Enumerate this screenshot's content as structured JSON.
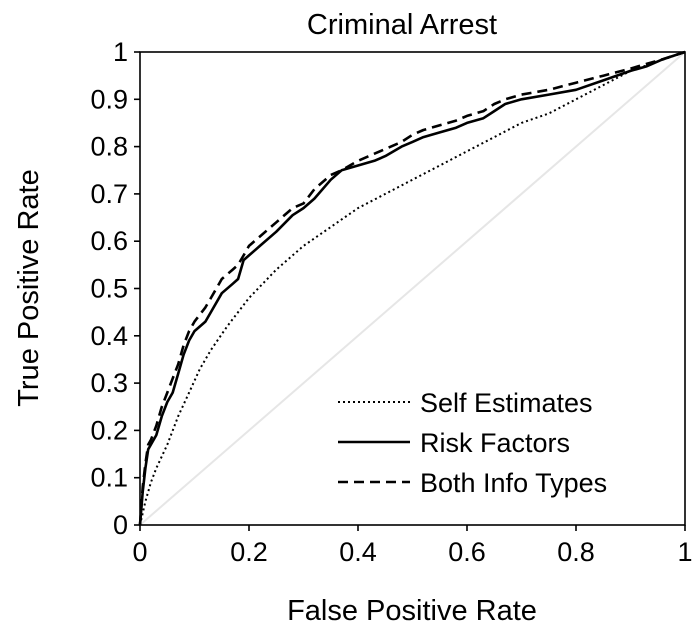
{
  "chart_data": {
    "type": "line",
    "title": "Criminal Arrest",
    "xlabel": "False Positive Rate",
    "ylabel": "True Positive Rate",
    "xlim": [
      0,
      1
    ],
    "ylim": [
      0,
      1
    ],
    "x_ticks": [
      "0",
      "0.2",
      "0.4",
      "0.6",
      "0.8",
      "1"
    ],
    "y_ticks": [
      "0",
      "0.1",
      "0.2",
      "0.3",
      "0.4",
      "0.5",
      "0.6",
      "0.7",
      "0.8",
      "0.9",
      "1"
    ],
    "x_tick_values": [
      0,
      0.2,
      0.4,
      0.6,
      0.8,
      1
    ],
    "y_tick_values": [
      0,
      0.1,
      0.2,
      0.3,
      0.4,
      0.5,
      0.6,
      0.7,
      0.8,
      0.9,
      1
    ],
    "grid": false,
    "legend_position": "bottom-right",
    "reference_line": {
      "points": [
        [
          0,
          0
        ],
        [
          1,
          1
        ]
      ],
      "color": "#e6e6e6"
    },
    "series": [
      {
        "name": "Self Estimates",
        "style": "dotted",
        "color": "#000000",
        "points": [
          [
            0,
            0
          ],
          [
            0.01,
            0.05
          ],
          [
            0.02,
            0.09
          ],
          [
            0.03,
            0.12
          ],
          [
            0.05,
            0.17
          ],
          [
            0.07,
            0.23
          ],
          [
            0.09,
            0.28
          ],
          [
            0.11,
            0.33
          ],
          [
            0.13,
            0.37
          ],
          [
            0.16,
            0.42
          ],
          [
            0.2,
            0.48
          ],
          [
            0.25,
            0.54
          ],
          [
            0.3,
            0.59
          ],
          [
            0.35,
            0.63
          ],
          [
            0.4,
            0.67
          ],
          [
            0.45,
            0.7
          ],
          [
            0.5,
            0.73
          ],
          [
            0.55,
            0.76
          ],
          [
            0.6,
            0.79
          ],
          [
            0.65,
            0.82
          ],
          [
            0.7,
            0.85
          ],
          [
            0.75,
            0.87
          ],
          [
            0.8,
            0.9
          ],
          [
            0.85,
            0.93
          ],
          [
            0.9,
            0.96
          ],
          [
            0.95,
            0.98
          ],
          [
            1,
            1
          ]
        ]
      },
      {
        "name": "Risk Factors",
        "style": "solid",
        "color": "#000000",
        "points": [
          [
            0,
            0
          ],
          [
            0.005,
            0.07
          ],
          [
            0.01,
            0.12
          ],
          [
            0.015,
            0.16
          ],
          [
            0.02,
            0.17
          ],
          [
            0.03,
            0.19
          ],
          [
            0.04,
            0.23
          ],
          [
            0.05,
            0.26
          ],
          [
            0.06,
            0.28
          ],
          [
            0.07,
            0.32
          ],
          [
            0.08,
            0.36
          ],
          [
            0.09,
            0.39
          ],
          [
            0.1,
            0.41
          ],
          [
            0.12,
            0.43
          ],
          [
            0.13,
            0.45
          ],
          [
            0.15,
            0.49
          ],
          [
            0.17,
            0.51
          ],
          [
            0.18,
            0.52
          ],
          [
            0.19,
            0.56
          ],
          [
            0.2,
            0.57
          ],
          [
            0.22,
            0.59
          ],
          [
            0.25,
            0.62
          ],
          [
            0.28,
            0.655
          ],
          [
            0.3,
            0.67
          ],
          [
            0.32,
            0.69
          ],
          [
            0.35,
            0.73
          ],
          [
            0.37,
            0.75
          ],
          [
            0.4,
            0.76
          ],
          [
            0.43,
            0.77
          ],
          [
            0.45,
            0.78
          ],
          [
            0.48,
            0.8
          ],
          [
            0.5,
            0.81
          ],
          [
            0.52,
            0.82
          ],
          [
            0.55,
            0.83
          ],
          [
            0.58,
            0.84
          ],
          [
            0.6,
            0.85
          ],
          [
            0.63,
            0.86
          ],
          [
            0.65,
            0.875
          ],
          [
            0.67,
            0.89
          ],
          [
            0.7,
            0.9
          ],
          [
            0.75,
            0.91
          ],
          [
            0.8,
            0.92
          ],
          [
            0.85,
            0.94
          ],
          [
            0.9,
            0.96
          ],
          [
            0.93,
            0.97
          ],
          [
            0.96,
            0.985
          ],
          [
            1,
            1
          ]
        ]
      },
      {
        "name": "Both Info Types",
        "style": "dashed",
        "color": "#000000",
        "points": [
          [
            0,
            0
          ],
          [
            0.005,
            0.08
          ],
          [
            0.01,
            0.13
          ],
          [
            0.015,
            0.17
          ],
          [
            0.02,
            0.18
          ],
          [
            0.03,
            0.21
          ],
          [
            0.04,
            0.25
          ],
          [
            0.05,
            0.28
          ],
          [
            0.06,
            0.31
          ],
          [
            0.07,
            0.34
          ],
          [
            0.08,
            0.38
          ],
          [
            0.09,
            0.41
          ],
          [
            0.1,
            0.43
          ],
          [
            0.12,
            0.46
          ],
          [
            0.13,
            0.48
          ],
          [
            0.15,
            0.52
          ],
          [
            0.17,
            0.54
          ],
          [
            0.18,
            0.55
          ],
          [
            0.19,
            0.57
          ],
          [
            0.2,
            0.59
          ],
          [
            0.22,
            0.61
          ],
          [
            0.25,
            0.64
          ],
          [
            0.28,
            0.67
          ],
          [
            0.3,
            0.68
          ],
          [
            0.32,
            0.71
          ],
          [
            0.35,
            0.74
          ],
          [
            0.37,
            0.75
          ],
          [
            0.4,
            0.77
          ],
          [
            0.43,
            0.785
          ],
          [
            0.45,
            0.795
          ],
          [
            0.48,
            0.81
          ],
          [
            0.5,
            0.825
          ],
          [
            0.52,
            0.835
          ],
          [
            0.55,
            0.845
          ],
          [
            0.58,
            0.855
          ],
          [
            0.6,
            0.865
          ],
          [
            0.63,
            0.875
          ],
          [
            0.65,
            0.89
          ],
          [
            0.67,
            0.9
          ],
          [
            0.7,
            0.91
          ],
          [
            0.75,
            0.92
          ],
          [
            0.8,
            0.935
          ],
          [
            0.85,
            0.95
          ],
          [
            0.9,
            0.965
          ],
          [
            0.93,
            0.975
          ],
          [
            0.96,
            0.985
          ],
          [
            1,
            1
          ]
        ]
      }
    ]
  }
}
